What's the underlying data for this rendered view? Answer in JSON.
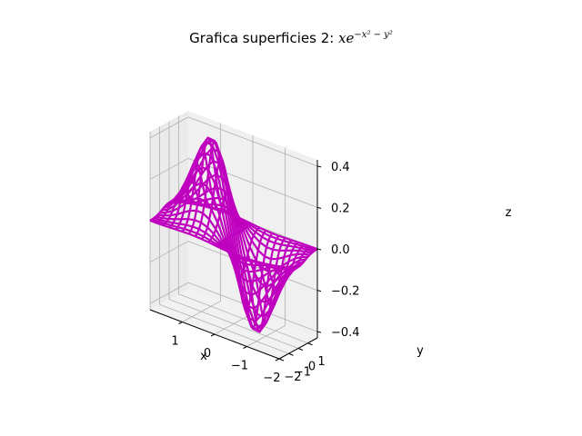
{
  "chart_data": {
    "type": "surface-wireframe",
    "title": "Grafica superficies 2: ",
    "title_math": {
      "base": "xe",
      "exponent": "−x² − y²"
    },
    "function": "x*exp(-x^2-y^2)",
    "xlabel": "x",
    "ylabel": "y",
    "zlabel": "z",
    "xlim": [
      -2,
      2
    ],
    "ylim": [
      -2,
      2
    ],
    "zlim": [
      -0.43,
      0.43
    ],
    "grid_steps": 21,
    "x_ticks": [
      1,
      0,
      -1,
      -2
    ],
    "x_tick_labels": [
      "1",
      "0",
      "−1",
      "−2"
    ],
    "y_ticks": [
      1,
      0,
      -1,
      -2
    ],
    "y_tick_labels": [
      "1",
      "0",
      "−1",
      "−2"
    ],
    "z_ticks": [
      0.4,
      0.2,
      0.0,
      -0.2,
      -0.4
    ],
    "z_tick_labels": [
      "0.4",
      "0.2",
      "0.0",
      "−0.2",
      "−0.4"
    ],
    "grid": true,
    "color": "#bf00bf"
  }
}
